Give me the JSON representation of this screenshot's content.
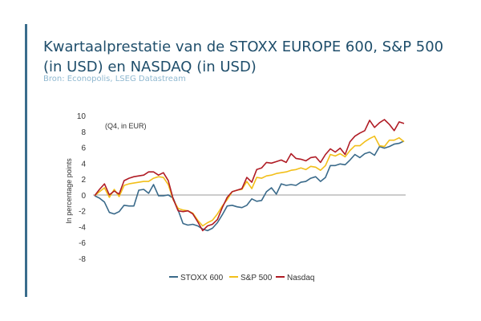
{
  "header": {
    "title": "Kwartaalprestatie van de STOXX EUROPE 600, S&P 500 (in USD) en NASDAQ (in USD)",
    "source": "Bron: Econopolis, LSEG Datastream"
  },
  "colors": {
    "accent_bar": "#3a6d8c",
    "title": "#1f4e6b",
    "source": "#8fb8d0"
  },
  "chart_data": {
    "type": "line",
    "annotation": "(Q4, in EUR)",
    "ylabel": "In percentage points",
    "xlabel": "",
    "ylim": [
      -8,
      10
    ],
    "yticks": [
      10,
      8,
      6,
      4,
      2,
      0,
      -2,
      -4,
      -6,
      -8
    ],
    "grid": false,
    "legend_position": "bottom",
    "x": [
      0,
      1,
      2,
      3,
      4,
      5,
      6,
      7,
      8,
      9,
      10,
      11,
      12,
      13,
      14,
      15,
      16,
      17,
      18,
      19,
      20,
      21,
      22,
      23,
      24,
      25,
      26,
      27,
      28,
      29,
      30,
      31,
      32,
      33,
      34,
      35,
      36,
      37,
      38,
      39,
      40,
      41,
      42,
      43,
      44,
      45,
      46,
      47,
      48,
      49,
      50,
      51,
      52,
      53,
      54,
      55,
      56,
      57,
      58,
      59,
      60,
      61,
      62,
      63
    ],
    "series": [
      {
        "name": "STOXX 600",
        "color": "#3a6a8a",
        "values": [
          0,
          -0.3,
          -0.8,
          -2.1,
          -2.3,
          -2.0,
          -1.2,
          -1.3,
          -1.3,
          0.7,
          0.8,
          0.3,
          1.4,
          0.0,
          0.0,
          0.1,
          -0.3,
          -1.8,
          -3.5,
          -3.7,
          -3.6,
          -3.8,
          -4.2,
          -4.4,
          -4.1,
          -3.4,
          -2.4,
          -1.3,
          -1.2,
          -1.4,
          -1.5,
          -1.2,
          -0.4,
          -0.7,
          -0.6,
          0.5,
          1.0,
          0.2,
          1.5,
          1.3,
          1.4,
          1.3,
          1.7,
          1.8,
          2.2,
          2.4,
          1.8,
          2.3,
          3.8,
          3.8,
          4.0,
          3.9,
          4.5,
          5.2,
          4.8,
          5.3,
          5.5,
          5.1,
          6.2,
          6.0,
          6.2,
          6.5,
          6.6,
          6.9
        ]
      },
      {
        "name": "S&P 500",
        "color": "#f2bf1a",
        "values": [
          0,
          0.5,
          1.0,
          -0.2,
          0.8,
          -0.1,
          1.3,
          1.5,
          1.6,
          1.7,
          1.8,
          1.8,
          2.2,
          2.4,
          2.3,
          1.4,
          -0.5,
          -1.6,
          -1.8,
          -1.9,
          -2.2,
          -3.1,
          -3.8,
          -3.4,
          -3.1,
          -2.3,
          -1.3,
          -0.5,
          0.5,
          0.7,
          0.8,
          1.8,
          0.9,
          2.3,
          2.2,
          2.5,
          2.6,
          2.8,
          2.9,
          3.0,
          3.2,
          3.3,
          3.5,
          3.3,
          3.7,
          3.6,
          3.2,
          3.8,
          5.2,
          5.0,
          5.3,
          4.9,
          5.7,
          6.3,
          6.3,
          6.8,
          7.2,
          7.5,
          6.3,
          6.2,
          7.0,
          7.0,
          7.3,
          6.8
        ]
      },
      {
        "name": "Nasdaq",
        "color": "#b01c25",
        "values": [
          0,
          0.8,
          1.5,
          0.1,
          0.6,
          0.2,
          1.9,
          2.2,
          2.4,
          2.5,
          2.6,
          3.0,
          3.0,
          2.6,
          2.9,
          1.9,
          -0.4,
          -1.9,
          -2.0,
          -1.9,
          -2.3,
          -3.3,
          -4.4,
          -3.8,
          -3.6,
          -3.0,
          -1.5,
          -0.2,
          0.5,
          0.7,
          0.9,
          2.3,
          1.7,
          3.3,
          3.5,
          4.2,
          4.1,
          4.3,
          4.5,
          4.2,
          5.3,
          4.7,
          4.6,
          4.4,
          4.8,
          4.9,
          4.2,
          5.2,
          5.9,
          5.5,
          6.0,
          5.2,
          6.8,
          7.5,
          7.9,
          8.2,
          9.5,
          8.6,
          9.2,
          9.6,
          9.0,
          8.2,
          9.3,
          9.1
        ]
      }
    ],
    "legend": [
      "STOXX 600",
      "S&P 500",
      "Nasdaq"
    ]
  }
}
